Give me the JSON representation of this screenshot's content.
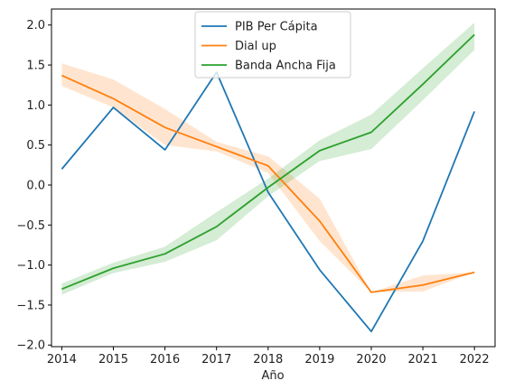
{
  "chart_data": {
    "type": "line",
    "title": "",
    "xlabel": "Año",
    "ylabel": "",
    "x": [
      2014,
      2015,
      2016,
      2017,
      2018,
      2019,
      2020,
      2021,
      2022
    ],
    "xlim": [
      2013.8,
      2022.4
    ],
    "ylim": [
      -2.02,
      2.2
    ],
    "x_ticks": [
      "2014",
      "2015",
      "2016",
      "2017",
      "2018",
      "2019",
      "2020",
      "2021",
      "2022"
    ],
    "y_ticks": [
      "−2.0",
      "−1.5",
      "−1.0",
      "−0.5",
      "0.0",
      "0.5",
      "1.0",
      "1.5",
      "2.0"
    ],
    "y_tick_values": [
      -2.0,
      -1.5,
      -1.0,
      -0.5,
      0.0,
      0.5,
      1.0,
      1.5,
      2.0
    ],
    "grid": false,
    "legend_position": "top-center",
    "series": [
      {
        "name": "PIB Per Cápita",
        "color": "#1f77b4",
        "values": [
          0.2,
          0.97,
          0.44,
          1.41,
          -0.09,
          -1.06,
          -1.83,
          -0.7,
          0.92
        ]
      },
      {
        "name": "Dial up",
        "color": "#ff7f0e",
        "values": [
          1.37,
          1.08,
          0.72,
          0.48,
          0.24,
          -0.45,
          -1.34,
          -1.25,
          -1.09
        ],
        "band_lower": [
          1.24,
          0.97,
          0.5,
          0.42,
          0.15,
          -0.7,
          -1.34,
          -1.33,
          -1.09
        ],
        "band_upper": [
          1.52,
          1.32,
          0.95,
          0.54,
          0.36,
          -0.17,
          -1.34,
          -1.13,
          -1.09
        ]
      },
      {
        "name": "Banda Ancha Fija",
        "color": "#2ca02c",
        "values": [
          -1.3,
          -1.04,
          -0.86,
          -0.52,
          -0.03,
          0.43,
          0.66,
          1.26,
          1.88
        ],
        "band_lower": [
          -1.37,
          -1.1,
          -0.96,
          -0.69,
          -0.14,
          0.3,
          0.45,
          1.06,
          1.69
        ],
        "band_upper": [
          -1.23,
          -0.97,
          -0.77,
          -0.34,
          0.08,
          0.56,
          0.88,
          1.46,
          2.03
        ]
      }
    ]
  }
}
